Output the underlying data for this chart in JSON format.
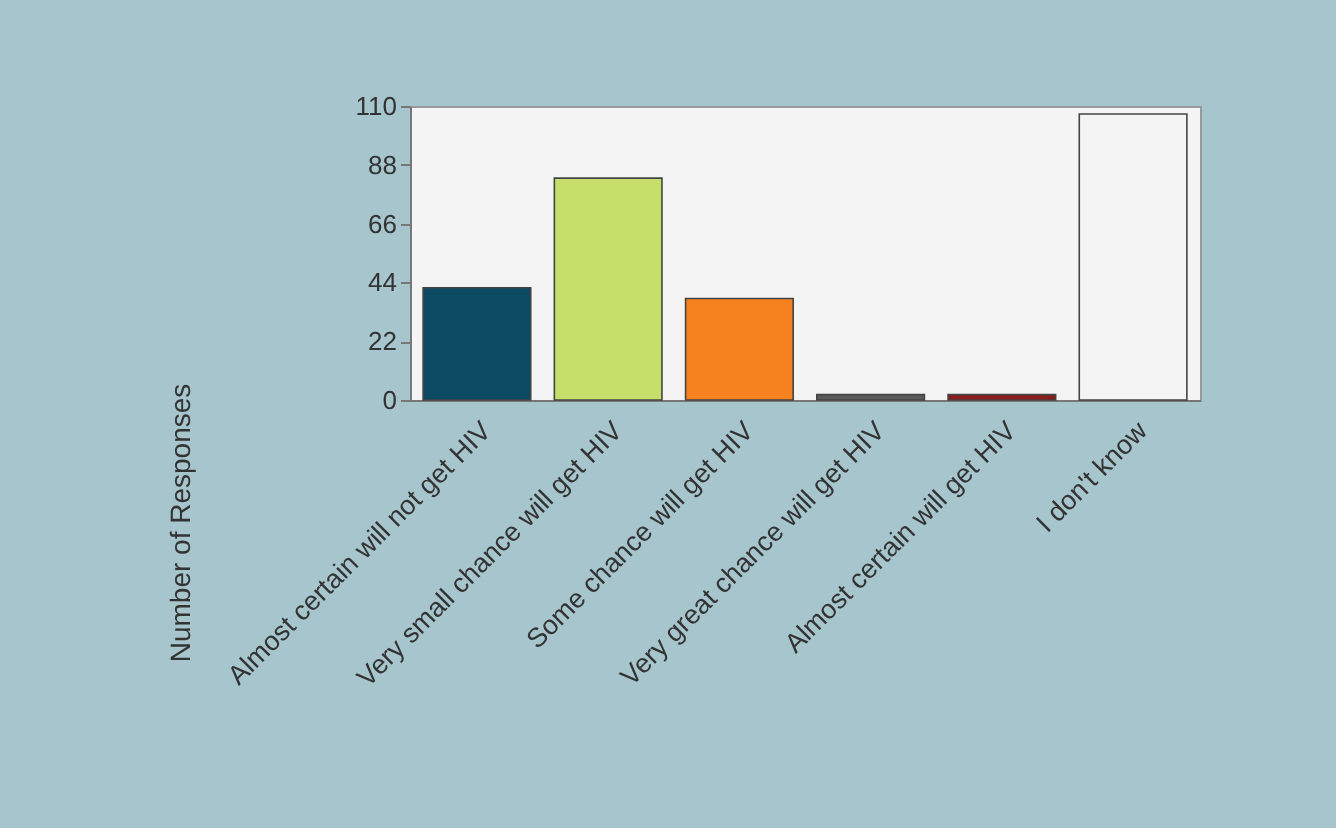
{
  "chart_data": {
    "type": "bar",
    "ylabel": "Number of Responses",
    "categories": [
      "Almost certain will not get HIV",
      "Very small chance will get HIV",
      "Some chance will get HIV",
      "Very great chance will get HIV",
      "Almost certain will get HIV",
      "I don't know"
    ],
    "values": [
      42,
      83,
      38,
      2,
      2,
      107
    ],
    "colors": [
      "#0d4a63",
      "#c5df6a",
      "#f5821f",
      "#5a5a5a",
      "#8b1a1a",
      "#f4f4f4"
    ],
    "ylim": [
      0,
      110
    ],
    "yticks": [
      0,
      22,
      44,
      66,
      88,
      110
    ]
  }
}
